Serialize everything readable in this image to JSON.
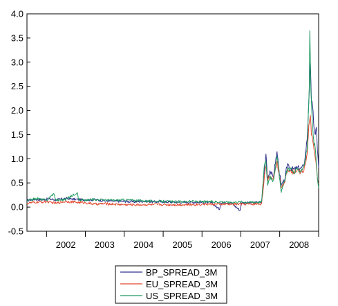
{
  "chart_data": {
    "type": "line",
    "title": "",
    "xlabel": "",
    "ylabel": "",
    "x_range": [
      "2001-07-01",
      "2009-01-01"
    ],
    "ylim": [
      -0.5,
      4.0
    ],
    "yticks": [
      -0.5,
      0.0,
      0.5,
      1.0,
      1.5,
      2.0,
      2.5,
      3.0,
      3.5,
      4.0
    ],
    "ytick_labels": [
      "-0.5",
      "0.0",
      "0.5",
      "1.0",
      "1.5",
      "2.0",
      "2.5",
      "3.0",
      "3.5",
      "4.0"
    ],
    "xtick_labels": [
      "2002",
      "2003",
      "2004",
      "2005",
      "2006",
      "2007",
      "2008"
    ],
    "grid": false,
    "legend_position": "bottom-center",
    "series": [
      {
        "name": "BP_SPREAD_3M",
        "color": "#2e2f8c",
        "points": [
          [
            "2001-07-01",
            0.14
          ],
          [
            "2001-09-15",
            0.16
          ],
          [
            "2001-12-01",
            0.15
          ],
          [
            "2002-01-15",
            0.17
          ],
          [
            "2002-04-01",
            0.15
          ],
          [
            "2002-07-01",
            0.18
          ],
          [
            "2002-10-01",
            0.16
          ],
          [
            "2003-01-01",
            0.15
          ],
          [
            "2003-04-01",
            0.15
          ],
          [
            "2003-07-01",
            0.13
          ],
          [
            "2003-10-01",
            0.12
          ],
          [
            "2004-01-01",
            0.12
          ],
          [
            "2004-04-01",
            0.11
          ],
          [
            "2004-07-01",
            0.12
          ],
          [
            "2004-10-01",
            0.11
          ],
          [
            "2005-01-01",
            0.11
          ],
          [
            "2005-04-01",
            0.1
          ],
          [
            "2005-07-01",
            0.1
          ],
          [
            "2005-10-01",
            0.1
          ],
          [
            "2006-01-01",
            0.1
          ],
          [
            "2006-04-01",
            0.09
          ],
          [
            "2006-06-15",
            -0.05
          ],
          [
            "2006-06-25",
            0.09
          ],
          [
            "2006-10-01",
            0.09
          ],
          [
            "2006-12-25",
            -0.07
          ],
          [
            "2007-01-05",
            0.09
          ],
          [
            "2007-04-01",
            0.09
          ],
          [
            "2007-07-15",
            0.1
          ],
          [
            "2007-08-09",
            0.75
          ],
          [
            "2007-08-25",
            1.1
          ],
          [
            "2007-09-10",
            0.6
          ],
          [
            "2007-10-01",
            0.75
          ],
          [
            "2007-11-01",
            0.62
          ],
          [
            "2007-12-07",
            1.15
          ],
          [
            "2007-12-25",
            0.78
          ],
          [
            "2008-01-15",
            0.45
          ],
          [
            "2008-02-15",
            0.55
          ],
          [
            "2008-03-15",
            0.9
          ],
          [
            "2008-04-15",
            0.8
          ],
          [
            "2008-05-15",
            0.78
          ],
          [
            "2008-06-15",
            0.82
          ],
          [
            "2008-07-15",
            0.8
          ],
          [
            "2008-08-15",
            0.85
          ],
          [
            "2008-09-15",
            1.4
          ],
          [
            "2008-10-01",
            2.2
          ],
          [
            "2008-10-15",
            3.0
          ],
          [
            "2008-10-25",
            2.2
          ],
          [
            "2008-11-05",
            2.1
          ],
          [
            "2008-11-20",
            1.6
          ],
          [
            "2008-12-01",
            1.5
          ],
          [
            "2008-12-10",
            1.65
          ],
          [
            "2008-12-20",
            1.2
          ],
          [
            "2009-01-01",
            0.82
          ]
        ]
      },
      {
        "name": "EU_SPREAD_3M",
        "color": "#e0462a",
        "points": [
          [
            "2001-07-01",
            0.08
          ],
          [
            "2001-10-01",
            0.1
          ],
          [
            "2002-01-01",
            0.11
          ],
          [
            "2002-04-01",
            0.08
          ],
          [
            "2002-07-01",
            0.12
          ],
          [
            "2002-10-01",
            0.1
          ],
          [
            "2003-01-01",
            0.09
          ],
          [
            "2003-04-01",
            0.06
          ],
          [
            "2003-07-01",
            0.07
          ],
          [
            "2003-10-01",
            0.06
          ],
          [
            "2004-01-01",
            0.05
          ],
          [
            "2004-04-01",
            0.05
          ],
          [
            "2004-07-01",
            0.05
          ],
          [
            "2004-10-01",
            0.05
          ],
          [
            "2005-01-01",
            0.05
          ],
          [
            "2005-04-01",
            0.05
          ],
          [
            "2005-07-01",
            0.05
          ],
          [
            "2005-10-01",
            0.05
          ],
          [
            "2006-01-01",
            0.06
          ],
          [
            "2006-04-01",
            0.06
          ],
          [
            "2006-07-01",
            0.06
          ],
          [
            "2006-10-01",
            0.06
          ],
          [
            "2007-01-01",
            0.06
          ],
          [
            "2007-04-01",
            0.06
          ],
          [
            "2007-07-15",
            0.07
          ],
          [
            "2007-08-09",
            0.6
          ],
          [
            "2007-08-25",
            0.85
          ],
          [
            "2007-09-10",
            0.55
          ],
          [
            "2007-10-01",
            0.62
          ],
          [
            "2007-11-01",
            0.6
          ],
          [
            "2007-12-07",
            0.95
          ],
          [
            "2007-12-25",
            0.7
          ],
          [
            "2008-01-15",
            0.4
          ],
          [
            "2008-02-15",
            0.5
          ],
          [
            "2008-03-15",
            0.8
          ],
          [
            "2008-04-15",
            0.75
          ],
          [
            "2008-05-15",
            0.72
          ],
          [
            "2008-06-15",
            0.78
          ],
          [
            "2008-07-15",
            0.72
          ],
          [
            "2008-08-15",
            0.75
          ],
          [
            "2008-09-15",
            1.1
          ],
          [
            "2008-10-01",
            1.7
          ],
          [
            "2008-10-15",
            1.9
          ],
          [
            "2008-10-25",
            1.5
          ],
          [
            "2008-11-05",
            1.4
          ],
          [
            "2008-11-20",
            1.15
          ],
          [
            "2008-12-01",
            1.0
          ],
          [
            "2008-12-10",
            0.85
          ],
          [
            "2008-12-20",
            0.6
          ],
          [
            "2009-01-01",
            0.48
          ]
        ]
      },
      {
        "name": "US_SPREAD_3M",
        "color": "#1f9a62",
        "points": [
          [
            "2001-07-01",
            0.13
          ],
          [
            "2001-10-01",
            0.18
          ],
          [
            "2002-01-01",
            0.14
          ],
          [
            "2002-03-10",
            0.28
          ],
          [
            "2002-04-01",
            0.14
          ],
          [
            "2002-07-01",
            0.16
          ],
          [
            "2002-10-15",
            0.3
          ],
          [
            "2002-11-01",
            0.15
          ],
          [
            "2003-01-01",
            0.14
          ],
          [
            "2003-04-01",
            0.16
          ],
          [
            "2003-07-01",
            0.15
          ],
          [
            "2003-10-01",
            0.14
          ],
          [
            "2004-01-01",
            0.15
          ],
          [
            "2004-04-01",
            0.14
          ],
          [
            "2004-07-01",
            0.13
          ],
          [
            "2004-10-01",
            0.12
          ],
          [
            "2005-01-01",
            0.12
          ],
          [
            "2005-04-01",
            0.11
          ],
          [
            "2005-07-01",
            0.11
          ],
          [
            "2005-10-01",
            0.12
          ],
          [
            "2006-01-01",
            0.11
          ],
          [
            "2006-04-01",
            0.11
          ],
          [
            "2006-07-01",
            0.11
          ],
          [
            "2006-10-01",
            0.1
          ],
          [
            "2007-01-01",
            0.11
          ],
          [
            "2007-04-01",
            0.1
          ],
          [
            "2007-07-15",
            0.11
          ],
          [
            "2007-08-09",
            0.85
          ],
          [
            "2007-08-25",
            0.95
          ],
          [
            "2007-09-10",
            0.45
          ],
          [
            "2007-10-01",
            0.65
          ],
          [
            "2007-11-01",
            0.55
          ],
          [
            "2007-12-07",
            1.05
          ],
          [
            "2007-12-25",
            0.75
          ],
          [
            "2008-01-15",
            0.3
          ],
          [
            "2008-02-15",
            0.55
          ],
          [
            "2008-03-15",
            0.8
          ],
          [
            "2008-04-15",
            0.8
          ],
          [
            "2008-05-15",
            0.7
          ],
          [
            "2008-06-15",
            0.78
          ],
          [
            "2008-07-15",
            0.75
          ],
          [
            "2008-08-15",
            0.85
          ],
          [
            "2008-09-15",
            1.2
          ],
          [
            "2008-10-05",
            2.5
          ],
          [
            "2008-10-10",
            3.65
          ],
          [
            "2008-10-20",
            2.4
          ],
          [
            "2008-11-01",
            1.8
          ],
          [
            "2008-11-15",
            1.4
          ],
          [
            "2008-12-01",
            1.2
          ],
          [
            "2008-12-10",
            0.9
          ],
          [
            "2008-12-20",
            0.6
          ],
          [
            "2009-01-01",
            0.4
          ]
        ]
      }
    ]
  }
}
